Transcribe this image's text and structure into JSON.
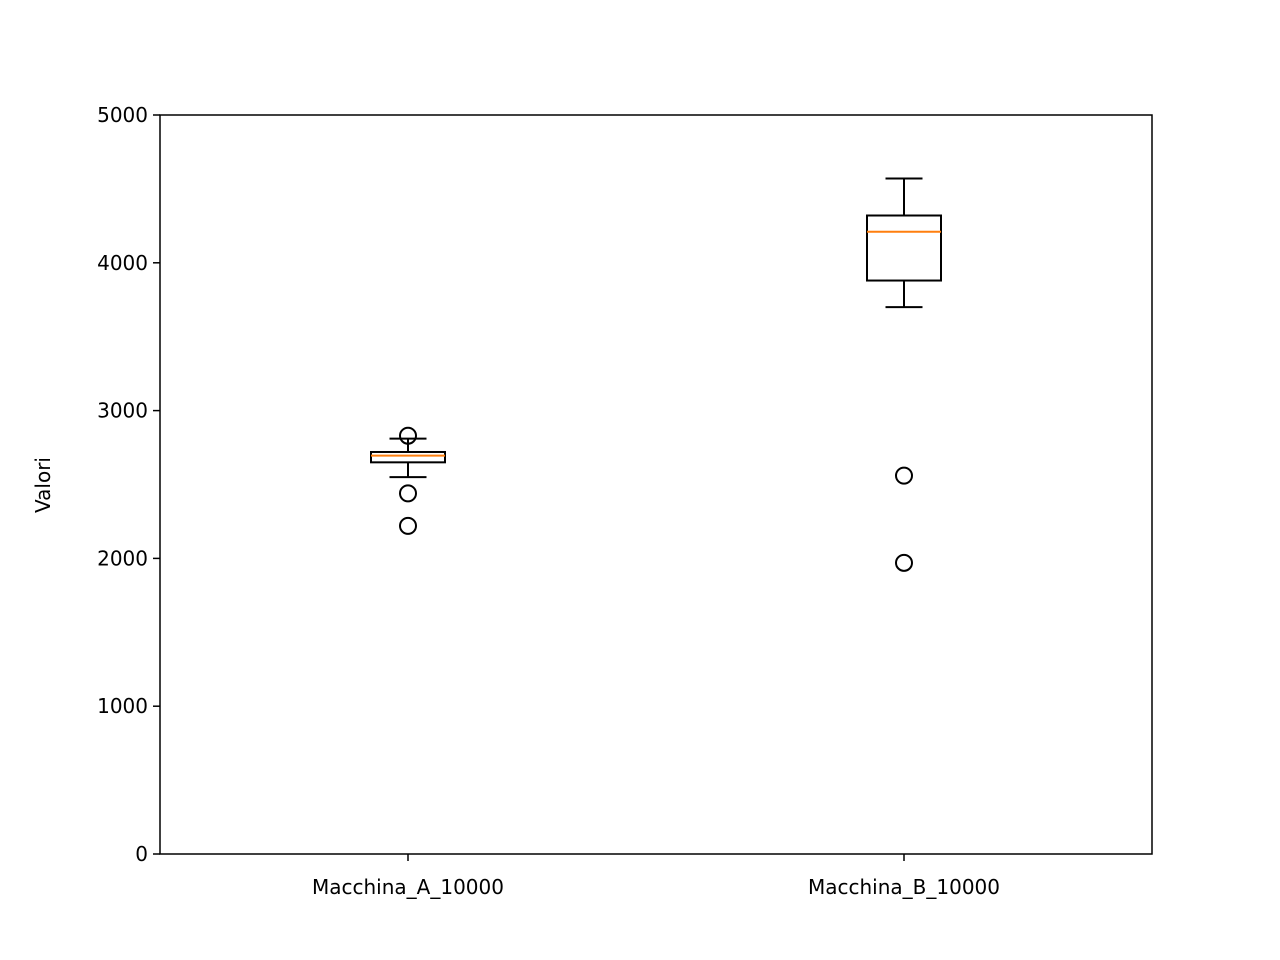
{
  "chart_data": {
    "type": "boxplot",
    "title": "",
    "xlabel": "",
    "ylabel": "Valori",
    "ylim": [
      0,
      5000
    ],
    "yticks": [
      0,
      1000,
      2000,
      3000,
      4000,
      5000
    ],
    "grid": false,
    "categories": [
      "Macchina_A_10000",
      "Macchina_B_10000"
    ],
    "boxes": [
      {
        "category": "Macchina_A_10000",
        "whisker_low": 2550,
        "q1": 2650,
        "median": 2695,
        "q3": 2720,
        "whisker_high": 2810,
        "outliers": [
          2830,
          2440,
          2220
        ]
      },
      {
        "category": "Macchina_B_10000",
        "whisker_low": 3700,
        "q1": 3880,
        "median": 4210,
        "q3": 4320,
        "whisker_high": 4570,
        "outliers": [
          2560,
          1970
        ]
      }
    ],
    "colors": {
      "box": "#000000",
      "median": "#ff7f0e",
      "outlier": "#000000"
    }
  }
}
